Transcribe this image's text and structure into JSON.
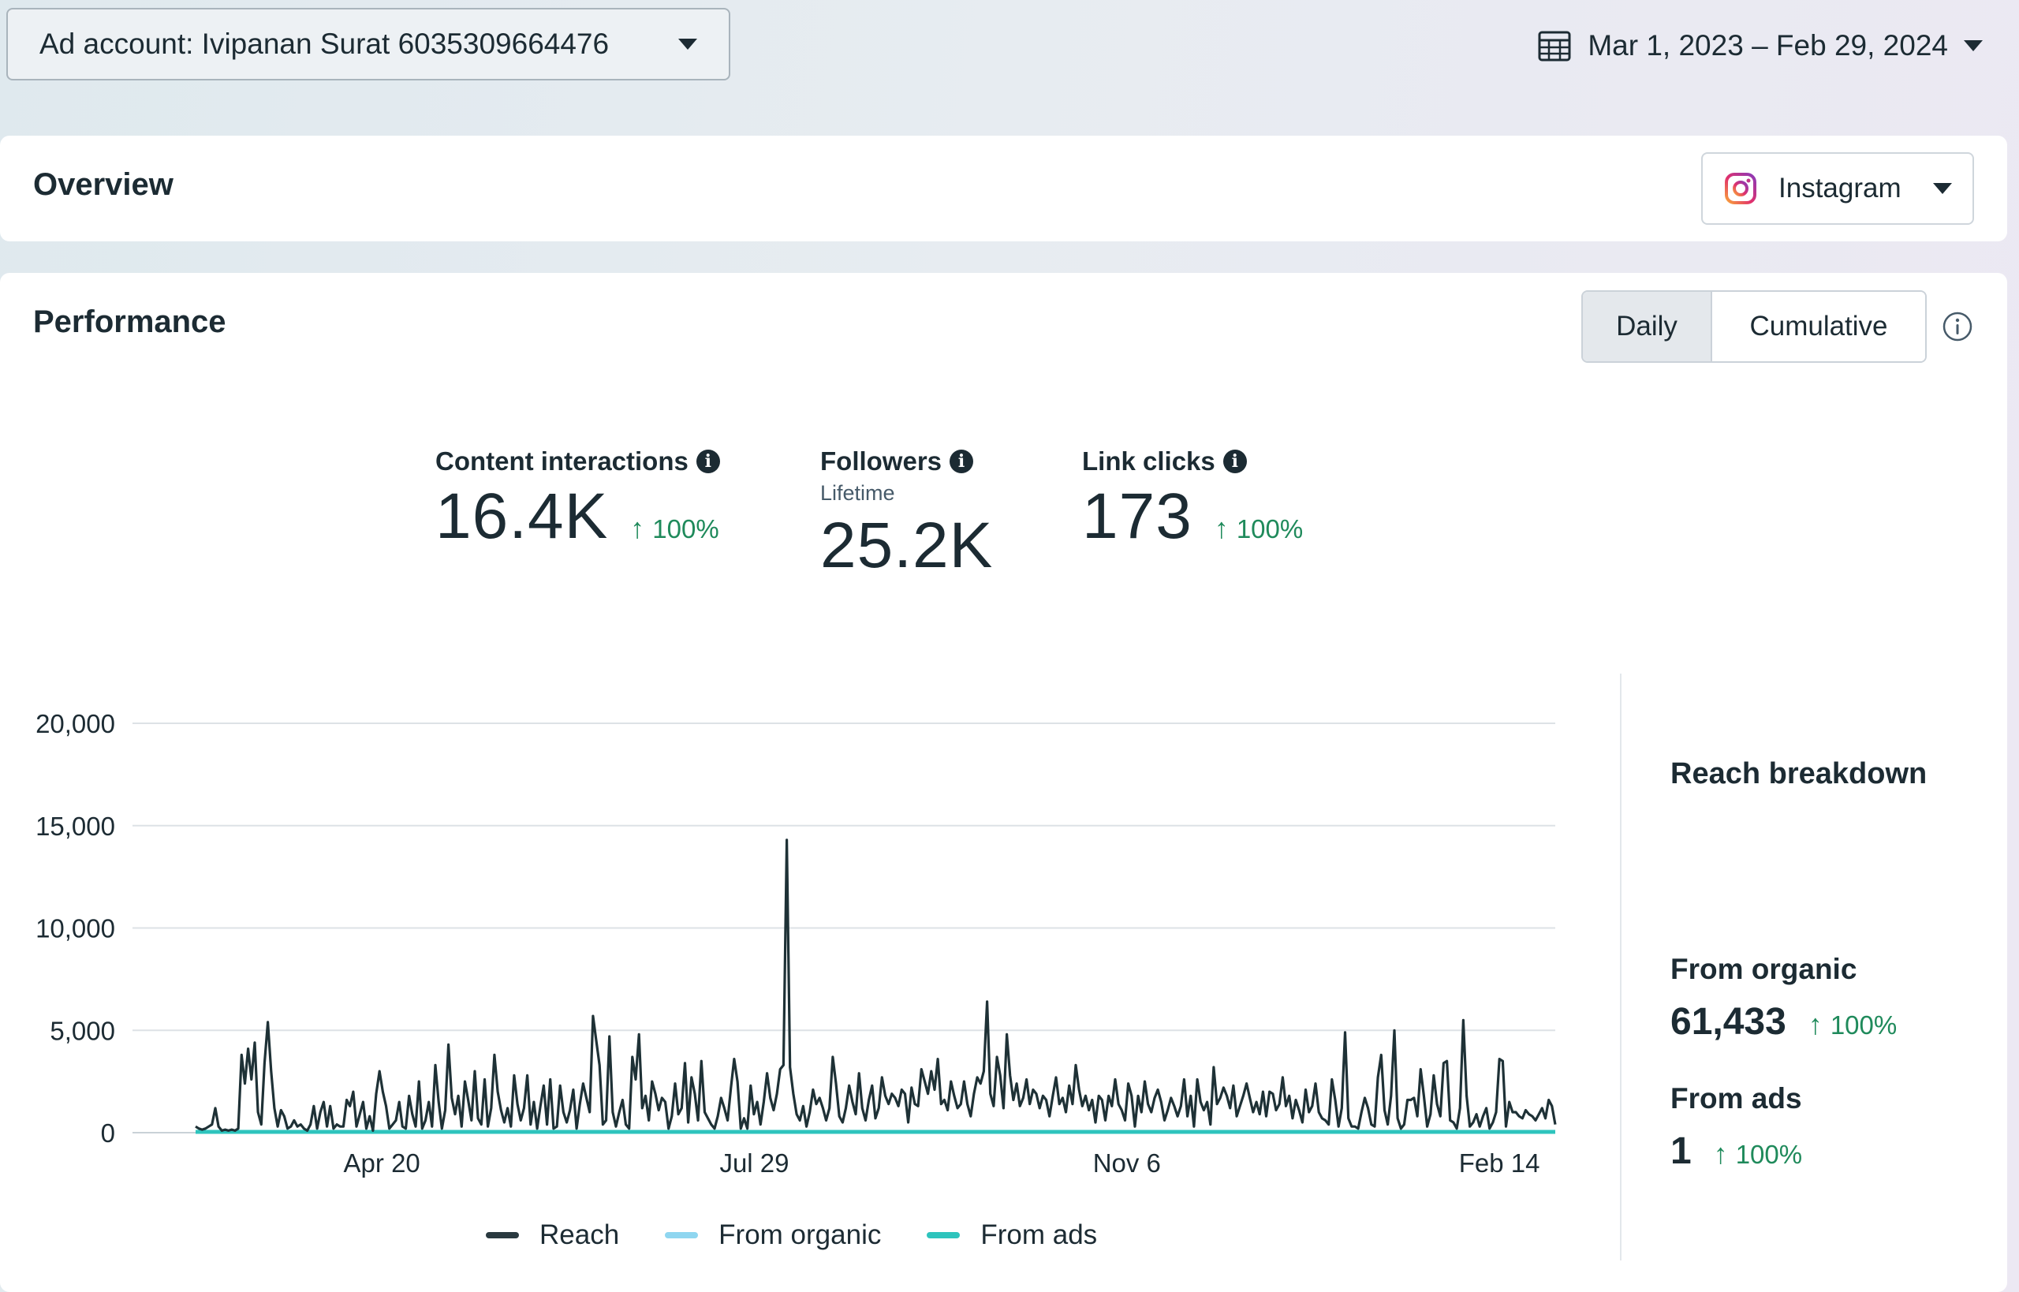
{
  "top_bar": {
    "account_label": "Ad account: Ivipanan Surat 6035309664476",
    "date_range": "Mar 1, 2023 – Feb 29, 2024"
  },
  "overview": {
    "title": "Overview",
    "platform": "Instagram"
  },
  "performance": {
    "title": "Performance",
    "toggle": {
      "daily": "Daily",
      "cumulative": "Cumulative",
      "selected": "Daily"
    }
  },
  "metrics": [
    {
      "label": "Content interactions",
      "sub": "",
      "value": "16.4K",
      "change": "100%"
    },
    {
      "label": "Followers",
      "sub": "Lifetime",
      "value": "25.2K",
      "change": ""
    },
    {
      "label": "Link clicks",
      "sub": "",
      "value": "173",
      "change": "100%"
    }
  ],
  "reach_breakdown": {
    "title": "Reach breakdown",
    "organic": {
      "label": "From organic",
      "value": "61,433",
      "change": "100%"
    },
    "ads": {
      "label": "From ads",
      "value": "1",
      "change": "100%"
    }
  },
  "colors": {
    "reach": "#1e3136",
    "organic": "#8fd6f0",
    "ads": "#2ec4bd",
    "positive": "#1f8a5b"
  },
  "chart_data": {
    "type": "line",
    "title": "",
    "xlabel": "",
    "ylabel": "",
    "ylim": [
      0,
      20000
    ],
    "y_ticks": [
      "20,000",
      "15,000",
      "10,000",
      "5,000",
      "0"
    ],
    "y_tick_values": [
      20000,
      15000,
      10000,
      5000,
      0
    ],
    "x_ticks": [
      {
        "label": "Apr 20",
        "day": 50
      },
      {
        "label": "Jul 29",
        "day": 150
      },
      {
        "label": "Nov 6",
        "day": 250
      },
      {
        "label": "Feb 14",
        "day": 350
      }
    ],
    "x_range_days": [
      0,
      365
    ],
    "grid": true,
    "legend_position": "bottom",
    "series": [
      {
        "name": "Reach",
        "color_key": "reach",
        "values": [
          300,
          200,
          150,
          200,
          300,
          400,
          1200,
          300,
          100,
          150,
          100,
          150,
          100,
          200,
          3800,
          2400,
          4100,
          2600,
          4400,
          1000,
          400,
          3400,
          5400,
          3000,
          1200,
          300,
          1100,
          800,
          200,
          300,
          600,
          300,
          400,
          200,
          100,
          400,
          1300,
          200,
          1000,
          1500,
          300,
          1300,
          200,
          400,
          300,
          300,
          1600,
          1300,
          2000,
          300,
          900,
          1500,
          200,
          800,
          100,
          1900,
          3000,
          2000,
          1300,
          200,
          400,
          600,
          1500,
          300,
          200,
          1800,
          900,
          300,
          2500,
          200,
          600,
          1500,
          300,
          3300,
          1500,
          200,
          1100,
          4300,
          1700,
          900,
          1800,
          300,
          2500,
          1600,
          600,
          3000,
          700,
          400,
          2600,
          300,
          1200,
          3800,
          2000,
          1100,
          500,
          1200,
          300,
          2800,
          1400,
          600,
          1200,
          2800,
          400,
          1500,
          200,
          1300,
          2300,
          400,
          2600,
          200,
          300,
          2300,
          1000,
          500,
          1100,
          2100,
          200,
          1400,
          2400,
          1700,
          1000,
          5700,
          4500,
          3300,
          400,
          600,
          4700,
          1000,
          300,
          1000,
          1600,
          400,
          200,
          3700,
          2600,
          4800,
          1200,
          1800,
          600,
          2500,
          1900,
          1100,
          1700,
          1500,
          200,
          800,
          2400,
          900,
          1200,
          3400,
          500,
          2700,
          1900,
          600,
          3500,
          1000,
          700,
          400,
          200,
          800,
          1700,
          1200,
          600,
          2200,
          3600,
          2500,
          200,
          700,
          200,
          2300,
          900,
          1500,
          400,
          1500,
          2900,
          1700,
          1100,
          1900,
          3100,
          3300,
          14300,
          3200,
          1900,
          900,
          600,
          1300,
          300,
          1000,
          2100,
          1400,
          1700,
          1200,
          600,
          1200,
          3700,
          2400,
          800,
          500,
          1200,
          2300,
          1500,
          900,
          2900,
          1200,
          600,
          1600,
          2300,
          700,
          1200,
          2700,
          1800,
          1400,
          1900,
          1700,
          1300,
          2100,
          1900,
          500,
          2200,
          1400,
          1300,
          3100,
          2500,
          1900,
          3000,
          2100,
          3600,
          1400,
          1600,
          1100,
          2500,
          1800,
          1200,
          1400,
          2500,
          1400,
          800,
          1900,
          2700,
          2400,
          3000,
          6400,
          1900,
          1300,
          3700,
          2800,
          1200,
          4800,
          2800,
          1600,
          2400,
          1300,
          1700,
          2600,
          1400,
          2100,
          1900,
          1200,
          1800,
          1600,
          800,
          1800,
          2700,
          1400,
          1700,
          1000,
          2300,
          1400,
          3300,
          2100,
          1300,
          1800,
          1100,
          1600,
          500,
          1800,
          1600,
          600,
          1800,
          1300,
          2600,
          1400,
          1100,
          600,
          2400,
          1800,
          300,
          1800,
          1000,
          2500,
          1400,
          1000,
          1700,
          2100,
          1500,
          600,
          1100,
          1700,
          1300,
          800,
          1300,
          2600,
          800,
          1800,
          300,
          2600,
          1500,
          1100,
          1500,
          400,
          3200,
          1400,
          1700,
          2200,
          1800,
          1200,
          2300,
          800,
          1300,
          1800,
          2400,
          1700,
          1000,
          1500,
          900,
          2000,
          800,
          2000,
          1900,
          1100,
          1400,
          2700,
          1300,
          1800,
          700,
          1600,
          1100,
          500,
          2100,
          1000,
          1300,
          2400,
          1000,
          700,
          600,
          400,
          2600,
          1600,
          300,
          1200,
          4900,
          700,
          300,
          300,
          200,
          1000,
          1700,
          1200,
          400,
          300,
          2700,
          3800,
          1100,
          400,
          1800,
          5000,
          700,
          200,
          400,
          1600,
          1600,
          1700,
          800,
          3100,
          1800,
          300,
          900,
          2800,
          1400,
          800,
          3400,
          3500,
          600,
          500,
          200,
          1200,
          5500,
          1800,
          300,
          500,
          900,
          300,
          800,
          1200,
          200,
          500,
          1000,
          3600,
          3500,
          300,
          1500,
          1000,
          1000,
          800,
          700,
          1100,
          900,
          800,
          600,
          900,
          1200,
          700,
          1600,
          1300,
          400
        ]
      },
      {
        "name": "From organic",
        "color_key": "organic",
        "values": []
      },
      {
        "name": "From ads",
        "color_key": "ads",
        "values": [
          0
        ]
      }
    ]
  }
}
